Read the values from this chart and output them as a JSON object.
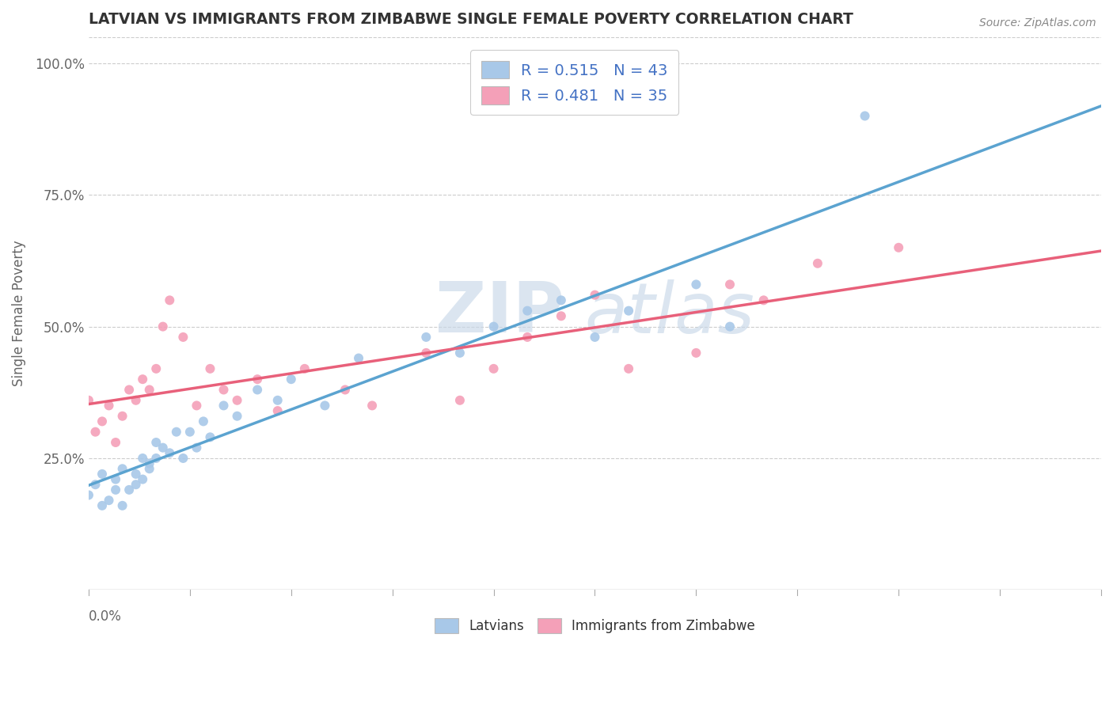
{
  "title": "LATVIAN VS IMMIGRANTS FROM ZIMBABWE SINGLE FEMALE POVERTY CORRELATION CHART",
  "source": "Source: ZipAtlas.com",
  "ylabel": "Single Female Poverty",
  "xmin": 0.0,
  "xmax": 0.15,
  "ymin": 0.0,
  "ymax": 1.05,
  "yticks": [
    0.25,
    0.5,
    0.75,
    1.0
  ],
  "ytick_labels": [
    "25.0%",
    "50.0%",
    "75.0%",
    "100.0%"
  ],
  "latvian_R": "0.515",
  "latvian_N": "43",
  "zimbabwe_R": "0.481",
  "zimbabwe_N": "35",
  "latvian_color": "#a8c8e8",
  "latvian_line_color": "#5ba3d0",
  "zimbabwe_color": "#f4a0b8",
  "zimbabwe_line_color": "#e8607a",
  "watermark_color": "#c8d8e8",
  "latvian_x": [
    0.0,
    0.001,
    0.002,
    0.002,
    0.003,
    0.004,
    0.004,
    0.005,
    0.005,
    0.006,
    0.007,
    0.007,
    0.008,
    0.008,
    0.009,
    0.009,
    0.01,
    0.01,
    0.011,
    0.012,
    0.013,
    0.014,
    0.015,
    0.016,
    0.017,
    0.018,
    0.02,
    0.022,
    0.025,
    0.028,
    0.03,
    0.035,
    0.04,
    0.05,
    0.055,
    0.06,
    0.065,
    0.07,
    0.075,
    0.08,
    0.09,
    0.095,
    0.115
  ],
  "latvian_y": [
    0.18,
    0.2,
    0.16,
    0.22,
    0.17,
    0.19,
    0.21,
    0.16,
    0.23,
    0.19,
    0.2,
    0.22,
    0.25,
    0.21,
    0.24,
    0.23,
    0.28,
    0.25,
    0.27,
    0.26,
    0.3,
    0.25,
    0.3,
    0.27,
    0.32,
    0.29,
    0.35,
    0.33,
    0.38,
    0.36,
    0.4,
    0.35,
    0.44,
    0.48,
    0.45,
    0.5,
    0.53,
    0.55,
    0.48,
    0.53,
    0.58,
    0.5,
    0.9
  ],
  "zimbabwe_x": [
    0.0,
    0.001,
    0.002,
    0.003,
    0.004,
    0.005,
    0.006,
    0.007,
    0.008,
    0.009,
    0.01,
    0.011,
    0.012,
    0.014,
    0.016,
    0.018,
    0.02,
    0.022,
    0.025,
    0.028,
    0.032,
    0.038,
    0.042,
    0.05,
    0.055,
    0.06,
    0.065,
    0.07,
    0.075,
    0.08,
    0.09,
    0.095,
    0.1,
    0.108,
    0.12
  ],
  "zimbabwe_y": [
    0.36,
    0.3,
    0.32,
    0.35,
    0.28,
    0.33,
    0.38,
    0.36,
    0.4,
    0.38,
    0.42,
    0.5,
    0.55,
    0.48,
    0.35,
    0.42,
    0.38,
    0.36,
    0.4,
    0.34,
    0.42,
    0.38,
    0.35,
    0.45,
    0.36,
    0.42,
    0.48,
    0.52,
    0.56,
    0.42,
    0.45,
    0.58,
    0.55,
    0.62,
    0.65
  ]
}
